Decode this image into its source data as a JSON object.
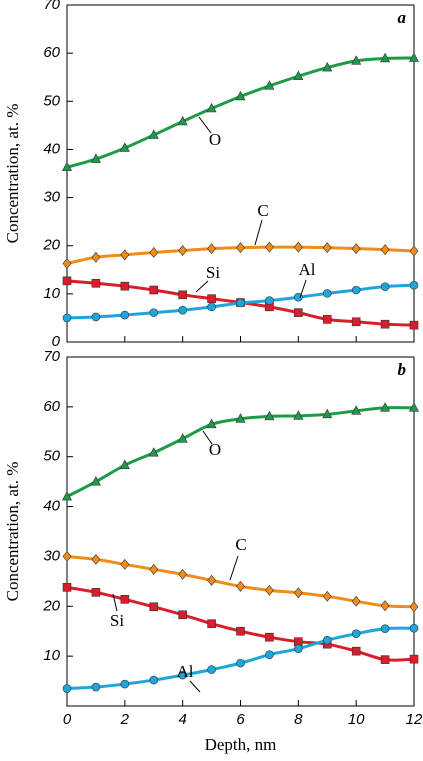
{
  "chart_data": [
    {
      "type": "line",
      "panel_label": "a",
      "ylabel": "Concentration, at. %",
      "x": [
        0,
        1,
        2,
        3,
        4,
        5,
        6,
        7,
        8,
        9,
        10,
        11,
        12
      ],
      "xlim": [
        0,
        12
      ],
      "xticks": [
        0,
        2,
        4,
        6,
        8,
        10,
        12
      ],
      "show_xtick_labels": false,
      "ylim": [
        0,
        70
      ],
      "yticks": [
        0,
        10,
        20,
        30,
        40,
        50,
        60,
        70
      ],
      "series": [
        {
          "name": "O",
          "color": "#1f9a48",
          "marker": "triangle",
          "values": [
            36.3,
            38,
            40.3,
            43,
            45.8,
            48.5,
            51,
            53.2,
            55.2,
            57,
            58.4,
            58.9,
            59
          ]
        },
        {
          "name": "C",
          "color": "#f08c1a",
          "marker": "diamond",
          "values": [
            16.3,
            17.6,
            18.1,
            18.6,
            19,
            19.4,
            19.6,
            19.7,
            19.7,
            19.6,
            19.4,
            19.2,
            18.9
          ]
        },
        {
          "name": "Si",
          "color": "#d81e2a",
          "marker": "square",
          "values": [
            12.7,
            12.2,
            11.6,
            10.8,
            9.8,
            9,
            8.2,
            7.3,
            6.1,
            4.7,
            4.2,
            3.7,
            3.5
          ]
        },
        {
          "name": "Al",
          "color": "#1ea6dc",
          "marker": "circle",
          "values": [
            5,
            5.2,
            5.6,
            6.1,
            6.6,
            7.3,
            8.1,
            8.6,
            9.3,
            10.1,
            10.8,
            11.5,
            11.8
          ]
        }
      ]
    },
    {
      "type": "line",
      "panel_label": "b",
      "ylabel": "Concentration, at. %",
      "xlabel": "Depth, nm",
      "x": [
        0,
        1,
        2,
        3,
        4,
        5,
        6,
        7,
        8,
        9,
        10,
        11,
        12
      ],
      "xlim": [
        0,
        12
      ],
      "xticks": [
        0,
        2,
        4,
        6,
        8,
        10,
        12
      ],
      "show_xtick_labels": true,
      "ylim": [
        0,
        70
      ],
      "yticks": [
        10,
        20,
        30,
        40,
        50,
        60,
        70
      ],
      "series": [
        {
          "name": "O",
          "color": "#1f9a48",
          "marker": "triangle",
          "values": [
            42,
            45,
            48.3,
            50.8,
            53.6,
            56.5,
            57.6,
            58.1,
            58.2,
            58.5,
            59.2,
            59.8,
            59.8
          ]
        },
        {
          "name": "C",
          "color": "#f08c1a",
          "marker": "diamond",
          "values": [
            30,
            29.4,
            28.4,
            27.4,
            26.4,
            25.2,
            24,
            23.2,
            22.7,
            22,
            21,
            20.1,
            19.9
          ]
        },
        {
          "name": "Si",
          "color": "#d81e2a",
          "marker": "square",
          "values": [
            23.8,
            22.8,
            21.4,
            19.9,
            18.3,
            16.5,
            15,
            13.8,
            12.9,
            12.4,
            11,
            9.3,
            9.4
          ]
        },
        {
          "name": "Al",
          "color": "#1ea6dc",
          "marker": "circle",
          "values": [
            3.5,
            3.8,
            4.4,
            5.2,
            6.2,
            7.3,
            8.6,
            10.3,
            11.5,
            13.2,
            14.5,
            15.5,
            15.6
          ]
        }
      ]
    }
  ]
}
